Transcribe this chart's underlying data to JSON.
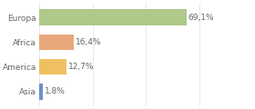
{
  "categories": [
    "Europa",
    "Africa",
    "America",
    "Asia"
  ],
  "values": [
    69.1,
    16.4,
    12.7,
    1.8
  ],
  "labels": [
    "69,1%",
    "16,4%",
    "12,7%",
    "1,8%"
  ],
  "bar_colors": [
    "#aec98a",
    "#e8a87c",
    "#f0c060",
    "#6b8fc9"
  ],
  "background_color": "#ffffff",
  "xlim": [
    0,
    100
  ],
  "bar_height": 0.65,
  "label_fontsize": 6.5,
  "category_fontsize": 6.5,
  "text_color": "#666666",
  "grid_color": "#e0e0e0",
  "grid_xticks": [
    0,
    25,
    50,
    75,
    100
  ]
}
